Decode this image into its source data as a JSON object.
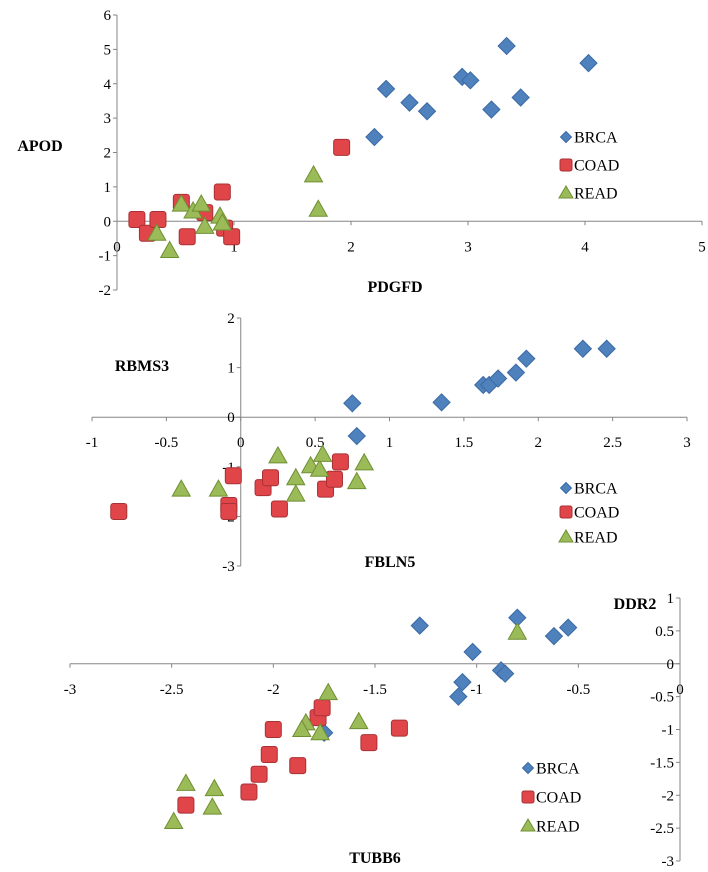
{
  "colors": {
    "BRCA": {
      "fill": "#4f81bd",
      "stroke": "#3a6aa6"
    },
    "COAD": {
      "fill": "#e0454a",
      "stroke": "#a83134"
    },
    "READ": {
      "fill": "#9bbb59",
      "stroke": "#6f8f33"
    },
    "axis": "#868686"
  },
  "chart_data": [
    {
      "type": "scatter",
      "xlabel": "PDGFD",
      "ylabel": "APOD",
      "xlim": [
        0,
        5
      ],
      "ylim": [
        -2,
        6
      ],
      "xticks": [
        "0",
        "1",
        "2",
        "3",
        "4",
        "5"
      ],
      "yticks": [
        "-2",
        "-1",
        "0",
        "1",
        "2",
        "3",
        "4",
        "5",
        "6"
      ],
      "legend_position": "right",
      "series": [
        {
          "name": "BRCA",
          "marker": "diamond",
          "points": [
            [
              2.2,
              2.45
            ],
            [
              2.3,
              3.85
            ],
            [
              2.5,
              3.45
            ],
            [
              2.65,
              3.2
            ],
            [
              2.95,
              4.2
            ],
            [
              3.02,
              4.1
            ],
            [
              3.2,
              3.25
            ],
            [
              3.33,
              5.1
            ],
            [
              3.45,
              3.6
            ],
            [
              4.03,
              4.6
            ]
          ]
        },
        {
          "name": "COAD",
          "marker": "square",
          "points": [
            [
              0.17,
              0.05
            ],
            [
              0.26,
              -0.35
            ],
            [
              0.35,
              0.05
            ],
            [
              0.55,
              0.55
            ],
            [
              0.6,
              -0.45
            ],
            [
              0.75,
              0.25
            ],
            [
              0.9,
              0.85
            ],
            [
              0.92,
              -0.2
            ],
            [
              0.98,
              -0.45
            ],
            [
              1.92,
              2.15
            ]
          ]
        },
        {
          "name": "READ",
          "marker": "triangle",
          "points": [
            [
              0.45,
              -0.85
            ],
            [
              0.55,
              0.5
            ],
            [
              0.34,
              -0.35
            ],
            [
              0.65,
              0.3
            ],
            [
              0.72,
              0.5
            ],
            [
              0.75,
              -0.15
            ],
            [
              0.88,
              0.15
            ],
            [
              0.9,
              -0.05
            ],
            [
              1.68,
              1.35
            ],
            [
              1.72,
              0.35
            ]
          ]
        }
      ]
    },
    {
      "type": "scatter",
      "xlabel": "FBLN5",
      "ylabel": "RBMS3",
      "xlim": [
        -1,
        3
      ],
      "ylim": [
        -3,
        2
      ],
      "xticks": [
        "-1",
        "-0.5",
        "0",
        "0.5",
        "1",
        "1.5",
        "2",
        "2.5",
        "3"
      ],
      "yticks": [
        "-3",
        "-2",
        "-1",
        "0",
        "1",
        "2"
      ],
      "legend_position": "right",
      "series": [
        {
          "name": "BRCA",
          "marker": "diamond",
          "points": [
            [
              0.75,
              0.28
            ],
            [
              1.35,
              0.3
            ],
            [
              1.63,
              0.65
            ],
            [
              1.67,
              0.65
            ],
            [
              1.73,
              0.78
            ],
            [
              1.85,
              0.9
            ],
            [
              1.92,
              1.18
            ],
            [
              2.3,
              1.38
            ],
            [
              2.46,
              1.38
            ],
            [
              0.78,
              -0.38
            ]
          ]
        },
        {
          "name": "COAD",
          "marker": "square",
          "points": [
            [
              -0.82,
              -1.9
            ],
            [
              -0.08,
              -1.78
            ],
            [
              -0.08,
              -1.9
            ],
            [
              -0.05,
              -1.18
            ],
            [
              0.15,
              -1.42
            ],
            [
              0.2,
              -1.22
            ],
            [
              0.26,
              -1.85
            ],
            [
              0.57,
              -1.45
            ],
            [
              0.63,
              -1.25
            ],
            [
              0.67,
              -0.9
            ]
          ]
        },
        {
          "name": "READ",
          "marker": "triangle",
          "points": [
            [
              -0.4,
              -1.45
            ],
            [
              -0.15,
              -1.45
            ],
            [
              0.25,
              -0.78
            ],
            [
              0.37,
              -1.22
            ],
            [
              0.37,
              -1.55
            ],
            [
              0.47,
              -0.98
            ],
            [
              0.53,
              -1.05
            ],
            [
              0.55,
              -0.75
            ],
            [
              0.78,
              -1.3
            ],
            [
              0.83,
              -0.92
            ]
          ]
        }
      ]
    },
    {
      "type": "scatter",
      "xlabel": "TUBB6",
      "ylabel": "DDR2",
      "xlim": [
        -3,
        0
      ],
      "ylim": [
        -3,
        1
      ],
      "xticks": [
        "-3",
        "-2.5",
        "-2",
        "-1.5",
        "-1",
        "-0.5",
        "0"
      ],
      "yticks": [
        "-3",
        "-2.5",
        "-2",
        "-1.5",
        "-1",
        "-0.5",
        "0",
        "0.5",
        "1"
      ],
      "legend_position": "bottom-right",
      "series": [
        {
          "name": "BRCA",
          "marker": "diamond",
          "points": [
            [
              -1.28,
              0.58
            ],
            [
              -1.02,
              0.18
            ],
            [
              -0.88,
              -0.1
            ],
            [
              -0.86,
              -0.15
            ],
            [
              -1.07,
              -0.28
            ],
            [
              -1.09,
              -0.5
            ],
            [
              -0.8,
              0.7
            ],
            [
              -0.62,
              0.42
            ],
            [
              -0.55,
              0.55
            ],
            [
              -1.75,
              -1.05
            ]
          ]
        },
        {
          "name": "COAD",
          "marker": "square",
          "points": [
            [
              -2.43,
              -2.15
            ],
            [
              -2.12,
              -1.95
            ],
            [
              -2.07,
              -1.68
            ],
            [
              -2.02,
              -1.38
            ],
            [
              -2.0,
              -1.0
            ],
            [
              -1.88,
              -1.55
            ],
            [
              -1.78,
              -0.82
            ],
            [
              -1.76,
              -0.67
            ],
            [
              -1.53,
              -1.2
            ],
            [
              -1.38,
              -0.98
            ]
          ]
        },
        {
          "name": "READ",
          "marker": "triangle",
          "points": [
            [
              -2.49,
              -2.4
            ],
            [
              -2.43,
              -1.82
            ],
            [
              -2.29,
              -1.9
            ],
            [
              -2.3,
              -2.18
            ],
            [
              -1.84,
              -0.9
            ],
            [
              -1.86,
              -1.0
            ],
            [
              -1.77,
              -1.05
            ],
            [
              -1.73,
              -0.44
            ],
            [
              -1.58,
              -0.88
            ],
            [
              -0.8,
              0.48
            ]
          ]
        }
      ]
    }
  ]
}
